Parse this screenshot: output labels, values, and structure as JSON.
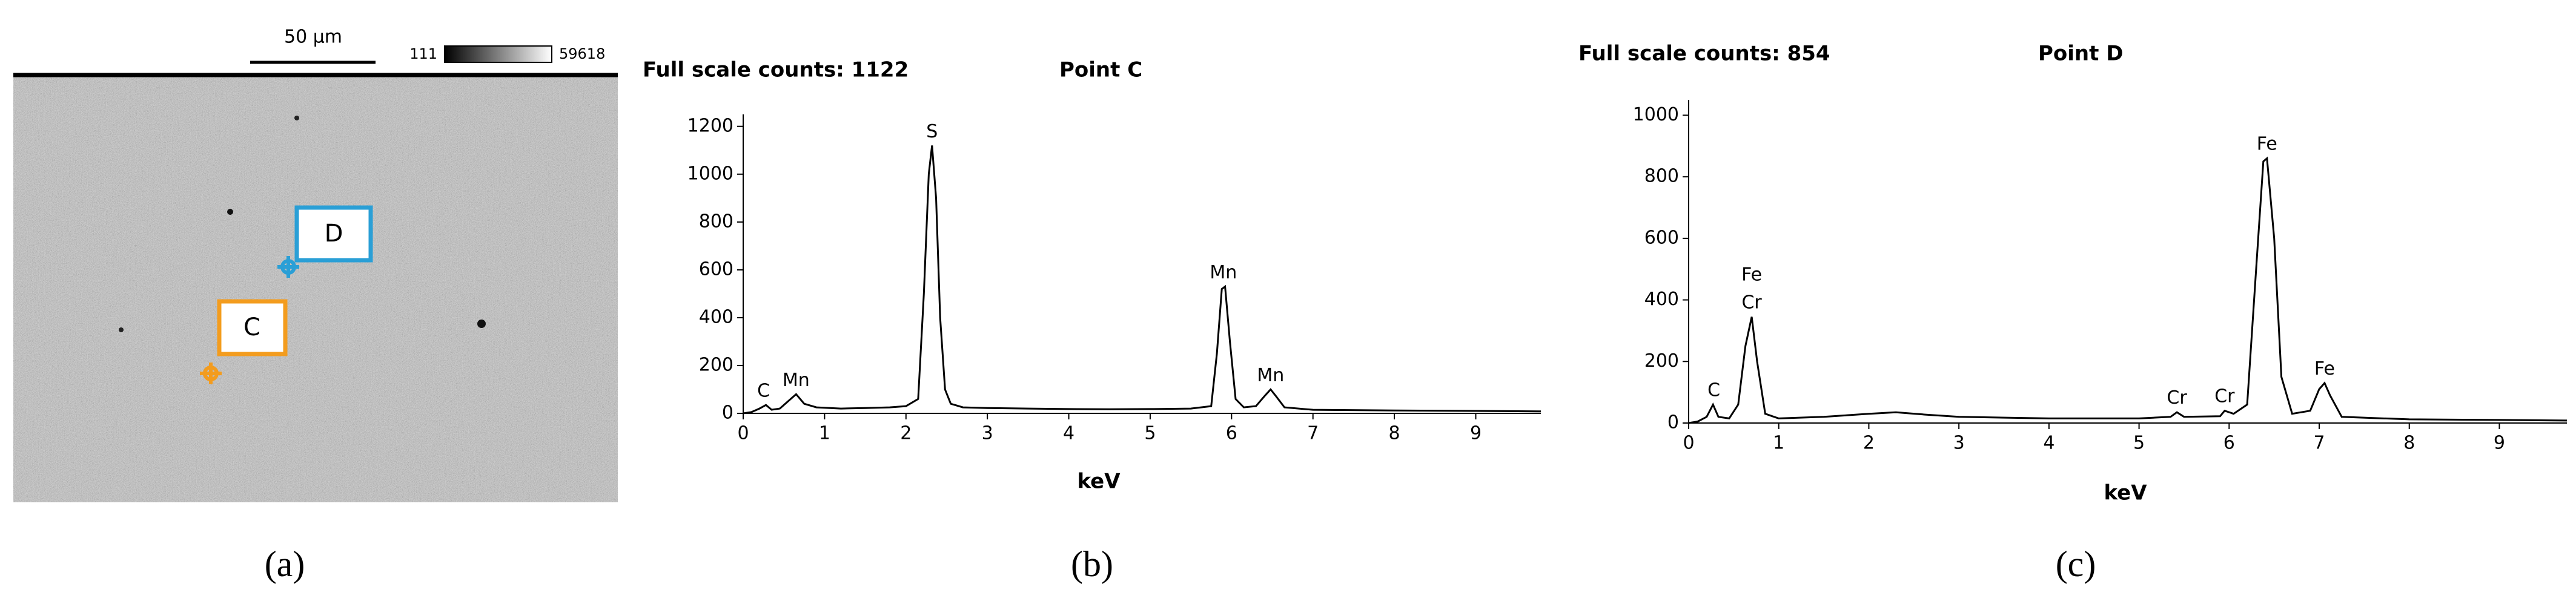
{
  "panel_a": {
    "scale_bar": "50 µm",
    "color_min": "111",
    "color_max": "59618",
    "marker_d": "D",
    "marker_c": "C"
  },
  "panel_labels": [
    "(a)",
    "(b)",
    "(c)"
  ],
  "chart_data": [
    {
      "type": "line",
      "title": "Full scale counts: 1122",
      "subtitle": "Point C",
      "x_label": "keV",
      "color": "#000000",
      "x": [
        0,
        0.1,
        0.2,
        0.28,
        0.35,
        0.45,
        0.55,
        0.65,
        0.75,
        0.9,
        1.2,
        1.5,
        1.8,
        2.0,
        2.15,
        2.22,
        2.28,
        2.32,
        2.37,
        2.42,
        2.48,
        2.55,
        2.7,
        3.0,
        3.5,
        4.0,
        4.5,
        5.0,
        5.5,
        5.75,
        5.82,
        5.88,
        5.92,
        5.98,
        6.05,
        6.15,
        6.3,
        6.4,
        6.48,
        6.55,
        6.65,
        7.0,
        8.0,
        9.0,
        9.8
      ],
      "values": [
        0,
        5,
        20,
        35,
        15,
        20,
        50,
        80,
        40,
        25,
        20,
        22,
        25,
        30,
        60,
        500,
        1000,
        1120,
        900,
        400,
        100,
        40,
        25,
        22,
        20,
        18,
        17,
        18,
        20,
        30,
        250,
        520,
        530,
        300,
        60,
        25,
        30,
        70,
        100,
        70,
        25,
        15,
        12,
        10,
        8
      ],
      "xlim": [
        0,
        9.8
      ],
      "xticks": [
        0,
        1,
        2,
        3,
        4,
        5,
        6,
        7,
        8,
        9
      ],
      "ylim": [
        0,
        1250
      ],
      "yticks": [
        0,
        200,
        400,
        600,
        800,
        1000,
        1200
      ],
      "annotations": [
        {
          "text": "C",
          "x": 0.25,
          "y": 40
        },
        {
          "text": "Mn",
          "x": 0.65,
          "y": 85
        },
        {
          "text": "S",
          "x": 2.32,
          "y": 1125
        },
        {
          "text": "Mn",
          "x": 5.9,
          "y": 535
        },
        {
          "text": "Mn",
          "x": 6.48,
          "y": 105
        }
      ]
    },
    {
      "type": "line",
      "title": "Full scale counts: 854",
      "subtitle": "Point D",
      "x_label": "keV",
      "color": "#000000",
      "x": [
        0,
        0.1,
        0.2,
        0.27,
        0.33,
        0.45,
        0.55,
        0.63,
        0.7,
        0.76,
        0.85,
        1.0,
        1.5,
        2.0,
        2.3,
        2.6,
        3.0,
        4.0,
        5.0,
        5.35,
        5.42,
        5.5,
        5.9,
        5.95,
        6.05,
        6.2,
        6.3,
        6.38,
        6.42,
        6.5,
        6.58,
        6.7,
        6.9,
        7.0,
        7.06,
        7.12,
        7.25,
        8.0,
        9.0,
        9.75
      ],
      "values": [
        0,
        5,
        20,
        60,
        20,
        15,
        60,
        250,
        345,
        200,
        30,
        15,
        20,
        30,
        35,
        28,
        20,
        15,
        15,
        20,
        35,
        20,
        22,
        40,
        30,
        60,
        500,
        850,
        860,
        600,
        150,
        30,
        40,
        110,
        130,
        90,
        20,
        12,
        10,
        8
      ],
      "xlim": [
        0,
        9.75
      ],
      "xticks": [
        0,
        1,
        2,
        3,
        4,
        5,
        6,
        7,
        8,
        9
      ],
      "ylim": [
        0,
        1050
      ],
      "yticks": [
        0,
        200,
        400,
        600,
        800,
        1000
      ],
      "annotations": [
        {
          "text": "C",
          "x": 0.28,
          "y": 65
        },
        {
          "text": "Cr",
          "x": 0.7,
          "y": 350
        },
        {
          "text": "Fe",
          "x": 0.7,
          "y": 440
        },
        {
          "text": "Cr",
          "x": 5.42,
          "y": 40
        },
        {
          "text": "Cr",
          "x": 5.95,
          "y": 45
        },
        {
          "text": "Fe",
          "x": 6.42,
          "y": 865
        },
        {
          "text": "Fe",
          "x": 7.06,
          "y": 135
        }
      ]
    }
  ]
}
